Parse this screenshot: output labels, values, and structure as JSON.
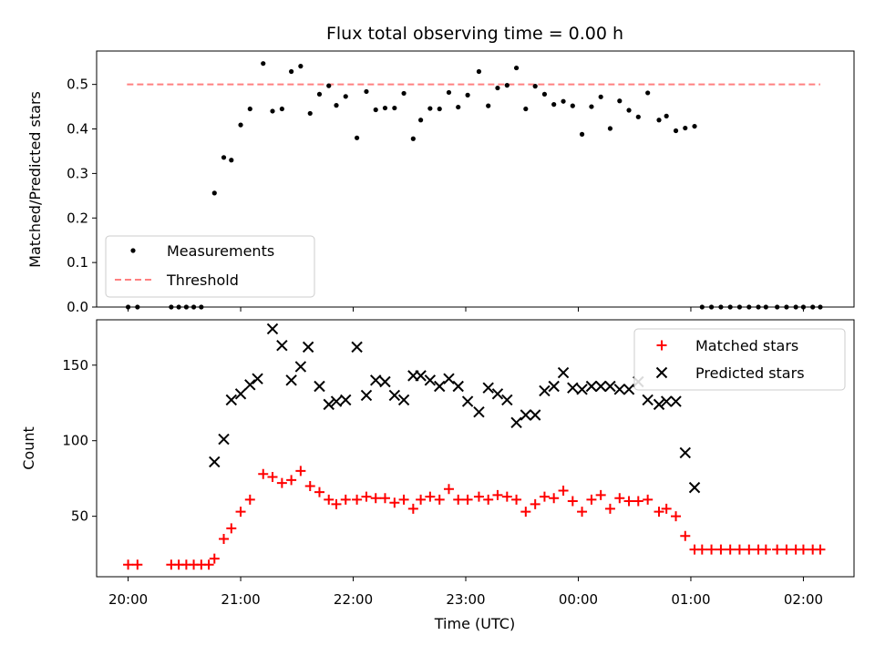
{
  "chart_data": [
    {
      "type": "scatter",
      "title": "Flux total observing time = 0.00 h",
      "xlabel": "",
      "ylabel": "Matched/Predicted stars",
      "ylim": [
        0,
        0.575
      ],
      "yticks": [
        "0.0",
        "0.1",
        "0.2",
        "0.3",
        "0.4",
        "0.5"
      ],
      "legend_position": "lower-left",
      "threshold": {
        "name": "Threshold",
        "value": 0.5,
        "x_range": [
          -0.01,
          6.15
        ],
        "color": "#ff8080"
      },
      "series": [
        {
          "name": "Measurements",
          "color": "#000000",
          "marker": "dot",
          "x": [
            0.0,
            0.083,
            0.383,
            0.45,
            0.517,
            0.583,
            0.65,
            0.767,
            0.85,
            0.917,
            1.0,
            1.083,
            1.2,
            1.283,
            1.367,
            1.45,
            1.533,
            1.617,
            1.7,
            1.783,
            1.85,
            1.933,
            2.033,
            2.117,
            2.2,
            2.283,
            2.367,
            2.45,
            2.533,
            2.6,
            2.683,
            2.767,
            2.85,
            2.933,
            3.017,
            3.117,
            3.2,
            3.283,
            3.367,
            3.45,
            3.533,
            3.617,
            3.7,
            3.783,
            3.867,
            3.95,
            4.033,
            4.117,
            4.2,
            4.283,
            4.367,
            4.45,
            4.533,
            4.617,
            4.717,
            4.783,
            4.867,
            4.95,
            5.033,
            5.1,
            5.183,
            5.267,
            5.35,
            5.433,
            5.517,
            5.6,
            5.667,
            5.767,
            5.85,
            5.933,
            6.0,
            6.083,
            6.15
          ],
          "y": [
            0.0,
            0.0,
            0.0,
            0.0,
            0.0,
            0.0,
            0.0,
            0.256,
            0.336,
            0.33,
            0.409,
            0.445,
            0.547,
            0.44,
            0.445,
            0.529,
            0.541,
            0.435,
            0.478,
            0.497,
            0.453,
            0.473,
            0.38,
            0.484,
            0.443,
            0.447,
            0.447,
            0.48,
            0.378,
            0.42,
            0.446,
            0.445,
            0.482,
            0.449,
            0.476,
            0.529,
            0.452,
            0.492,
            0.498,
            0.537,
            0.445,
            0.496,
            0.478,
            0.455,
            0.462,
            0.452,
            0.388,
            0.45,
            0.472,
            0.401,
            0.463,
            0.442,
            0.427,
            0.481,
            0.42,
            0.429,
            0.396,
            0.402,
            0.406,
            0.0,
            0.0,
            0.0,
            0.0,
            0.0,
            0.0,
            0.0,
            0.0,
            0.0,
            0.0,
            0.0,
            0.0,
            0.0,
            0.0
          ]
        }
      ]
    },
    {
      "type": "scatter",
      "title": "",
      "xlabel": "Time (UTC)",
      "ylabel": "Count",
      "ylim": [
        10,
        180
      ],
      "yticks": [
        "50",
        "100",
        "150"
      ],
      "xlim": [
        -0.28,
        6.45
      ],
      "xticks": [
        "20:00",
        "21:00",
        "22:00",
        "23:00",
        "00:00",
        "01:00",
        "02:00"
      ],
      "legend_position": "upper-right",
      "series": [
        {
          "name": "Matched stars",
          "color": "#ff0000",
          "marker": "plus",
          "x": [
            0.0,
            0.083,
            0.383,
            0.45,
            0.517,
            0.583,
            0.65,
            0.717,
            0.767,
            0.85,
            0.917,
            1.0,
            1.083,
            1.2,
            1.283,
            1.367,
            1.45,
            1.533,
            1.617,
            1.7,
            1.783,
            1.85,
            1.933,
            2.033,
            2.117,
            2.2,
            2.283,
            2.367,
            2.45,
            2.533,
            2.6,
            2.683,
            2.767,
            2.85,
            2.933,
            3.017,
            3.117,
            3.2,
            3.283,
            3.367,
            3.45,
            3.533,
            3.617,
            3.7,
            3.783,
            3.867,
            3.95,
            4.033,
            4.117,
            4.2,
            4.283,
            4.367,
            4.45,
            4.533,
            4.617,
            4.717,
            4.783,
            4.867,
            4.95,
            5.033,
            5.1,
            5.183,
            5.267,
            5.35,
            5.433,
            5.517,
            5.6,
            5.667,
            5.767,
            5.85,
            5.933,
            6.0,
            6.083,
            6.15
          ],
          "y": [
            18,
            18,
            18,
            18,
            18,
            18,
            18,
            18,
            22,
            35,
            42,
            53,
            61,
            78,
            76,
            72,
            74,
            80,
            70,
            66,
            61,
            58,
            61,
            61,
            63,
            62,
            62,
            59,
            61,
            55,
            61,
            63,
            61,
            68,
            61,
            61,
            63,
            61,
            64,
            63,
            61,
            53,
            58,
            63,
            62,
            67,
            60,
            53,
            61,
            64,
            55,
            62,
            60,
            60,
            61,
            53,
            55,
            50,
            37,
            28,
            28,
            28,
            28,
            28,
            28,
            28,
            28,
            28,
            28,
            28,
            28,
            28,
            28,
            28
          ]
        },
        {
          "name": "Predicted stars",
          "color": "#000000",
          "marker": "x",
          "x": [
            0.767,
            0.85,
            0.917,
            1.0,
            1.083,
            1.15,
            1.283,
            1.367,
            1.45,
            1.533,
            1.6,
            1.7,
            1.783,
            1.85,
            1.933,
            2.033,
            2.117,
            2.2,
            2.283,
            2.367,
            2.45,
            2.533,
            2.6,
            2.683,
            2.767,
            2.85,
            2.933,
            3.017,
            3.117,
            3.2,
            3.283,
            3.367,
            3.45,
            3.533,
            3.617,
            3.7,
            3.783,
            3.867,
            3.95,
            4.033,
            4.117,
            4.2,
            4.283,
            4.367,
            4.45,
            4.533,
            4.617,
            4.717,
            4.783,
            4.867,
            4.95,
            5.033
          ],
          "y": [
            86,
            101,
            127,
            131,
            137,
            141,
            174,
            163,
            140,
            149,
            162,
            136,
            124,
            126,
            127,
            162,
            130,
            140,
            139,
            130,
            127,
            143,
            143,
            140,
            136,
            141,
            136,
            126,
            119,
            135,
            131,
            127,
            112,
            117,
            117,
            133,
            136,
            145,
            135,
            134,
            136,
            136,
            136,
            134,
            134,
            139,
            127,
            124,
            126,
            126,
            92,
            69
          ]
        }
      ]
    }
  ]
}
